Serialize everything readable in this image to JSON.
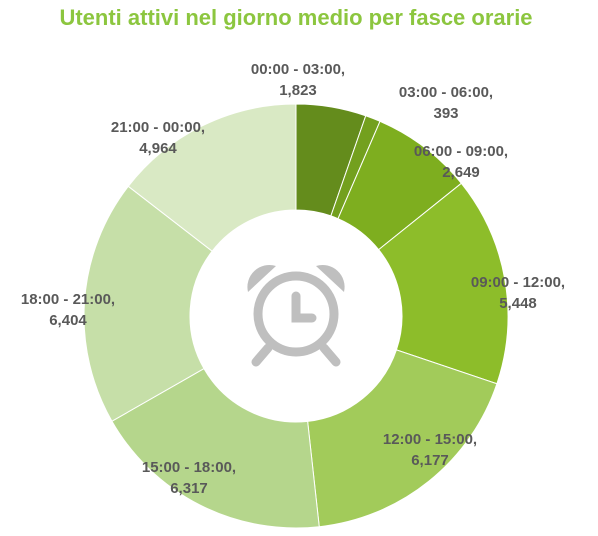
{
  "chart_data": {
    "type": "donut",
    "title": "Utenti attivi nel giorno medio per fasce orarie",
    "categories": [
      "00:00 - 03:00,",
      "03:00 - 06:00,",
      "06:00 - 09:00,",
      "09:00 - 12:00,",
      "12:00 - 15:00,",
      "15:00 - 18:00,",
      "18:00 - 21:00,",
      "21:00 - 00:00,"
    ],
    "values": [
      1823,
      393,
      2649,
      5448,
      6177,
      6317,
      6404,
      4964
    ],
    "value_labels": [
      "1,823",
      "393",
      "2,649",
      "5,448",
      "6,177",
      "6,317",
      "6,404",
      "4,964"
    ],
    "colors": [
      "#648c1c",
      "#73a01e",
      "#7eae1f",
      "#8dbd2a",
      "#a2cb5a",
      "#b5d68c",
      "#c6dfa8",
      "#d9e9c4"
    ]
  }
}
